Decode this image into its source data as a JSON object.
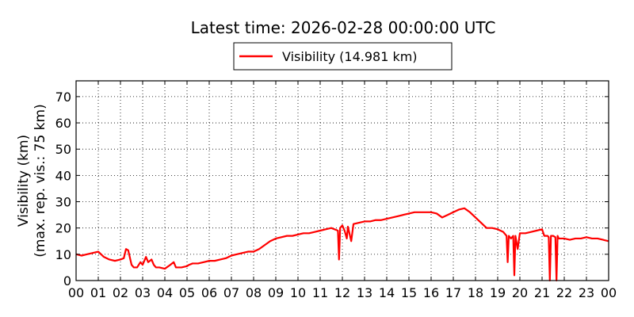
{
  "chart_data": {
    "type": "line",
    "title": "Latest time: 2026-02-28 00:00:00 UTC",
    "ylabel_line1": "Visibility (km)",
    "ylabel_line2": "(max. rep. vis.: 75 km)",
    "xlabel": "",
    "xlim": [
      0,
      24
    ],
    "ylim": [
      0,
      76
    ],
    "xtick_values": [
      0,
      1,
      2,
      3,
      4,
      5,
      6,
      7,
      8,
      9,
      10,
      11,
      12,
      13,
      14,
      15,
      16,
      17,
      18,
      19,
      20,
      21,
      22,
      23,
      24
    ],
    "xtick_labels": [
      "00",
      "01",
      "02",
      "03",
      "04",
      "05",
      "06",
      "07",
      "08",
      "09",
      "10",
      "11",
      "12",
      "13",
      "14",
      "15",
      "16",
      "17",
      "18",
      "19",
      "20",
      "21",
      "22",
      "23",
      "00"
    ],
    "ytick_values": [
      0,
      10,
      20,
      30,
      40,
      50,
      60,
      70
    ],
    "ytick_labels": [
      "0",
      "10",
      "20",
      "30",
      "40",
      "50",
      "60",
      "70"
    ],
    "grid": true,
    "legend_position": "top-center (above plot)",
    "series": [
      {
        "name": "Visibility (14.981 km)",
        "color": "#ff0000",
        "x": [
          0.0,
          0.25,
          0.5,
          0.75,
          1.0,
          1.25,
          1.5,
          1.75,
          2.0,
          2.15,
          2.25,
          2.35,
          2.5,
          2.6,
          2.75,
          2.9,
          3.0,
          3.15,
          3.25,
          3.4,
          3.5,
          3.6,
          3.75,
          4.0,
          4.25,
          4.4,
          4.5,
          4.75,
          5.0,
          5.1,
          5.25,
          5.5,
          5.75,
          6.0,
          6.25,
          6.5,
          6.75,
          7.0,
          7.25,
          7.5,
          7.75,
          8.0,
          8.25,
          8.5,
          8.75,
          9.0,
          9.25,
          9.5,
          9.75,
          10.0,
          10.25,
          10.5,
          10.75,
          11.0,
          11.25,
          11.5,
          11.8,
          11.85,
          11.9,
          12.0,
          12.1,
          12.2,
          12.25,
          12.4,
          12.5,
          12.75,
          13.0,
          13.25,
          13.5,
          13.75,
          14.0,
          14.25,
          14.5,
          14.75,
          15.0,
          15.25,
          15.5,
          15.75,
          16.0,
          16.25,
          16.5,
          16.75,
          17.0,
          17.25,
          17.5,
          17.75,
          18.0,
          18.25,
          18.5,
          18.75,
          19.0,
          19.25,
          19.4,
          19.45,
          19.5,
          19.6,
          19.7,
          19.75,
          19.8,
          19.9,
          20.0,
          20.25,
          20.5,
          20.75,
          21.0,
          21.1,
          21.25,
          21.3,
          21.35,
          21.4,
          21.5,
          21.6,
          21.65,
          21.7,
          21.75,
          22.0,
          22.25,
          22.5,
          22.75,
          23.0,
          23.25,
          23.5,
          23.75,
          24.0
        ],
        "y": [
          10,
          9.5,
          10,
          10.5,
          11,
          9,
          8,
          7.5,
          8,
          8.5,
          12,
          11.5,
          6,
          5,
          5,
          7,
          6,
          9,
          7,
          8,
          6,
          5,
          5,
          4.5,
          6,
          7,
          5,
          5,
          5.5,
          6,
          6.5,
          6.5,
          7,
          7.5,
          7.5,
          8,
          8.5,
          9.5,
          10,
          10.5,
          11,
          11,
          12,
          13.5,
          15,
          16,
          16.5,
          17,
          17,
          17.5,
          18,
          18,
          18.5,
          19,
          19.5,
          20,
          19,
          8,
          20,
          21,
          19,
          16,
          20.5,
          15,
          21.5,
          22,
          22.5,
          22.5,
          23,
          23,
          23.5,
          24,
          24.5,
          25,
          25.5,
          26,
          26,
          26,
          26,
          25.5,
          24,
          25,
          26,
          27,
          27.5,
          26,
          24,
          22,
          20,
          20,
          19.5,
          18.5,
          17,
          7,
          17,
          16,
          17,
          2,
          17,
          12,
          18,
          18,
          18.5,
          19,
          19.5,
          17,
          17,
          16.5,
          0,
          17,
          17,
          16.5,
          0,
          17,
          16,
          16,
          15.5,
          16,
          16,
          16.5,
          16,
          16,
          15.5,
          15
        ]
      }
    ]
  }
}
